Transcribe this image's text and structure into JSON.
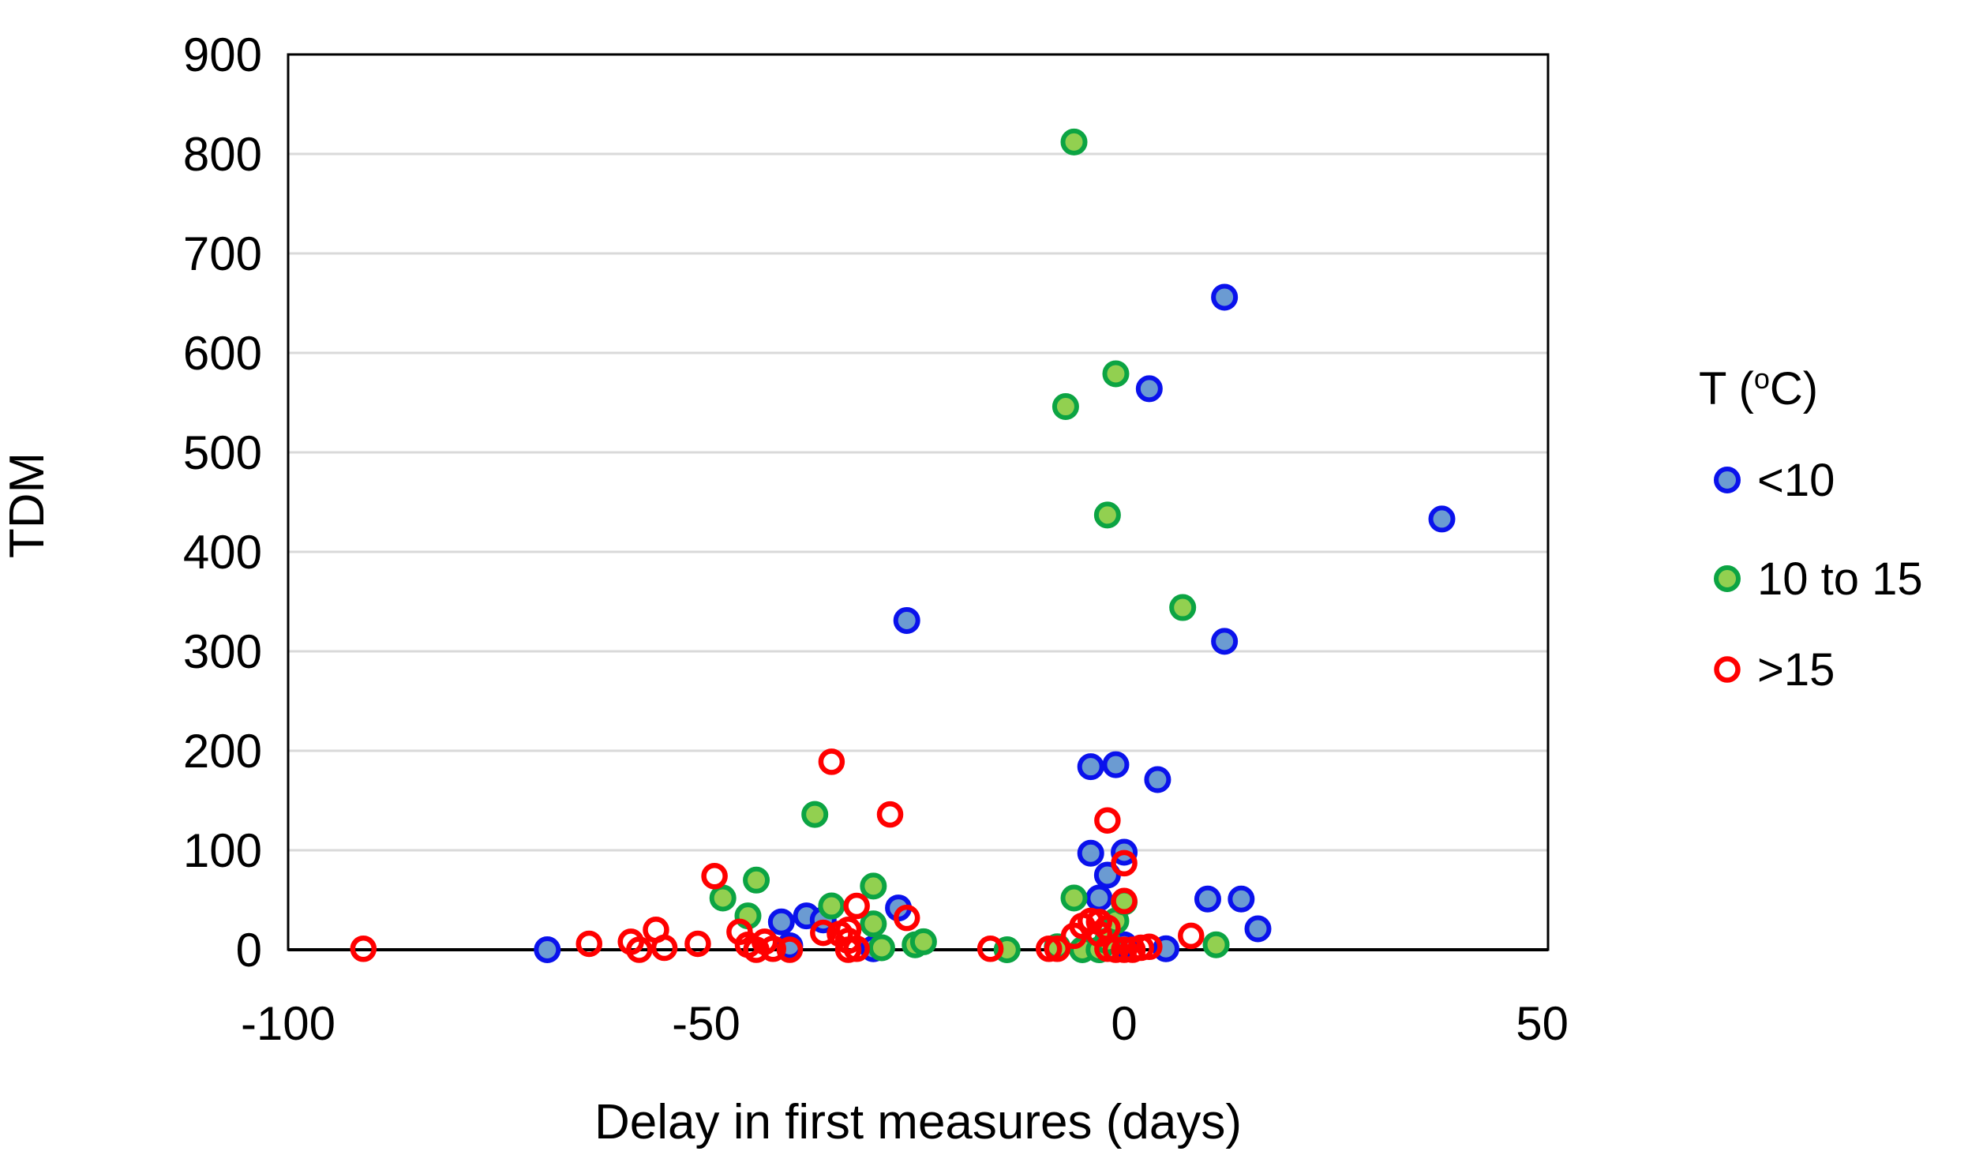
{
  "chart": {
    "legend": {
      "title_prefix": "T (",
      "title_sup": "o",
      "title_suffix": "C)"
    }
  },
  "chart_data": {
    "type": "scatter",
    "title": "",
    "xlabel": "Delay in first measures (days)",
    "ylabel": "TDM",
    "xlim": [
      -100,
      50.7
    ],
    "ylim": [
      0,
      900
    ],
    "x_ticks": [
      -100,
      -50,
      0,
      50
    ],
    "y_ticks": [
      0,
      100,
      200,
      300,
      400,
      500,
      600,
      700,
      800,
      900
    ],
    "grid": "horizontal-only",
    "gridline_color": "#d9d9d9",
    "border_color": "#000000",
    "legend_position": "right",
    "legend_title": "T (oC)",
    "series": [
      {
        "name": "<10",
        "marker": {
          "shape": "circle",
          "fill": "#6b9bd2",
          "stroke": "#0a12ec",
          "filled": true
        },
        "points": [
          [
            -69,
            0
          ],
          [
            -41,
            28
          ],
          [
            -40,
            4
          ],
          [
            -38,
            34
          ],
          [
            -36,
            30
          ],
          [
            -30,
            1
          ],
          [
            -27,
            42
          ],
          [
            -26,
            331
          ],
          [
            -4,
            184
          ],
          [
            -1,
            186
          ],
          [
            4,
            171
          ],
          [
            -4,
            97
          ],
          [
            0,
            98
          ],
          [
            -2,
            75
          ],
          [
            -3,
            52
          ],
          [
            0,
            5
          ],
          [
            5,
            1
          ],
          [
            3,
            564
          ],
          [
            12,
            656
          ],
          [
            12,
            310
          ],
          [
            38,
            433
          ],
          [
            10,
            51
          ],
          [
            14,
            51
          ],
          [
            16,
            21
          ]
        ]
      },
      {
        "name": "10 to 15",
        "marker": {
          "shape": "circle",
          "fill": "#92d050",
          "stroke": "#0ca443",
          "filled": true
        },
        "points": [
          [
            -48,
            52
          ],
          [
            -45,
            34
          ],
          [
            -44,
            70
          ],
          [
            -37,
            136
          ],
          [
            -35,
            44
          ],
          [
            -30,
            64
          ],
          [
            -30,
            26
          ],
          [
            -29,
            2
          ],
          [
            -25,
            5
          ],
          [
            -24,
            8
          ],
          [
            -14,
            0
          ],
          [
            -8,
            3
          ],
          [
            -6,
            52
          ],
          [
            -5,
            0
          ],
          [
            -3,
            0
          ],
          [
            -2,
            9
          ],
          [
            -1,
            29
          ],
          [
            0,
            48
          ],
          [
            11,
            5
          ],
          [
            -6,
            812
          ],
          [
            -7,
            546
          ],
          [
            -1,
            579
          ],
          [
            -2,
            437
          ],
          [
            7,
            344
          ]
        ]
      },
      {
        "name": ">15",
        "marker": {
          "shape": "open-circle",
          "fill": "none",
          "stroke": "#ff0000",
          "filled": false
        },
        "points": [
          [
            -91,
            1
          ],
          [
            -64,
            6
          ],
          [
            -59,
            8
          ],
          [
            -58,
            0
          ],
          [
            -56,
            20
          ],
          [
            -55,
            2
          ],
          [
            -51,
            6
          ],
          [
            -49,
            74
          ],
          [
            -46,
            18
          ],
          [
            -45,
            5
          ],
          [
            -44,
            0
          ],
          [
            -43,
            8
          ],
          [
            -42,
            1
          ],
          [
            -40,
            0
          ],
          [
            -36,
            17
          ],
          [
            -35,
            189
          ],
          [
            -34,
            16
          ],
          [
            -33,
            20
          ],
          [
            -33,
            9
          ],
          [
            -33,
            0
          ],
          [
            -32,
            44
          ],
          [
            -32,
            1
          ],
          [
            -28,
            136
          ],
          [
            -26,
            32
          ],
          [
            -16,
            1
          ],
          [
            -9,
            1
          ],
          [
            -8,
            1
          ],
          [
            -6,
            14
          ],
          [
            -5,
            24
          ],
          [
            -4,
            29
          ],
          [
            -3,
            28
          ],
          [
            -3,
            16
          ],
          [
            -2,
            130
          ],
          [
            -2,
            22
          ],
          [
            -2,
            1
          ],
          [
            -1,
            0
          ],
          [
            0,
            87
          ],
          [
            0,
            49
          ],
          [
            0,
            0
          ],
          [
            1,
            0
          ],
          [
            2,
            2
          ],
          [
            3,
            3
          ],
          [
            8,
            14
          ]
        ]
      }
    ]
  }
}
